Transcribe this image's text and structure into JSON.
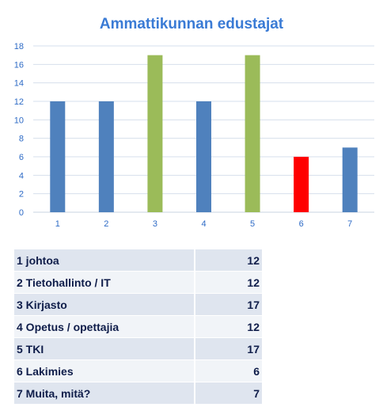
{
  "chart_data": {
    "type": "bar",
    "title": "Ammattikunnan edustajat",
    "categories": [
      "1",
      "2",
      "3",
      "4",
      "5",
      "6",
      "7"
    ],
    "values": [
      12,
      12,
      17,
      12,
      17,
      6,
      7
    ],
    "colors": [
      "#4f81bd",
      "#4f81bd",
      "#9bbb59",
      "#4f81bd",
      "#9bbb59",
      "#ff0000",
      "#4f81bd"
    ],
    "ylim": [
      0,
      18
    ],
    "yticks": [
      0,
      2,
      4,
      6,
      8,
      10,
      12,
      14,
      16,
      18
    ],
    "grid": true,
    "xlabel": "",
    "ylabel": ""
  },
  "table": {
    "rows": [
      {
        "label": "1 johtoa",
        "value": "12"
      },
      {
        "label": "2 Tietohallinto / IT",
        "value": "12"
      },
      {
        "label": "3 Kirjasto",
        "value": "17"
      },
      {
        "label": "4 Opetus / opettajia",
        "value": "12"
      },
      {
        "label": "5 TKI",
        "value": "17"
      },
      {
        "label": "6 Lakimies",
        "value": "6"
      },
      {
        "label": "7 Muita, mitä?",
        "value": "7"
      }
    ]
  }
}
